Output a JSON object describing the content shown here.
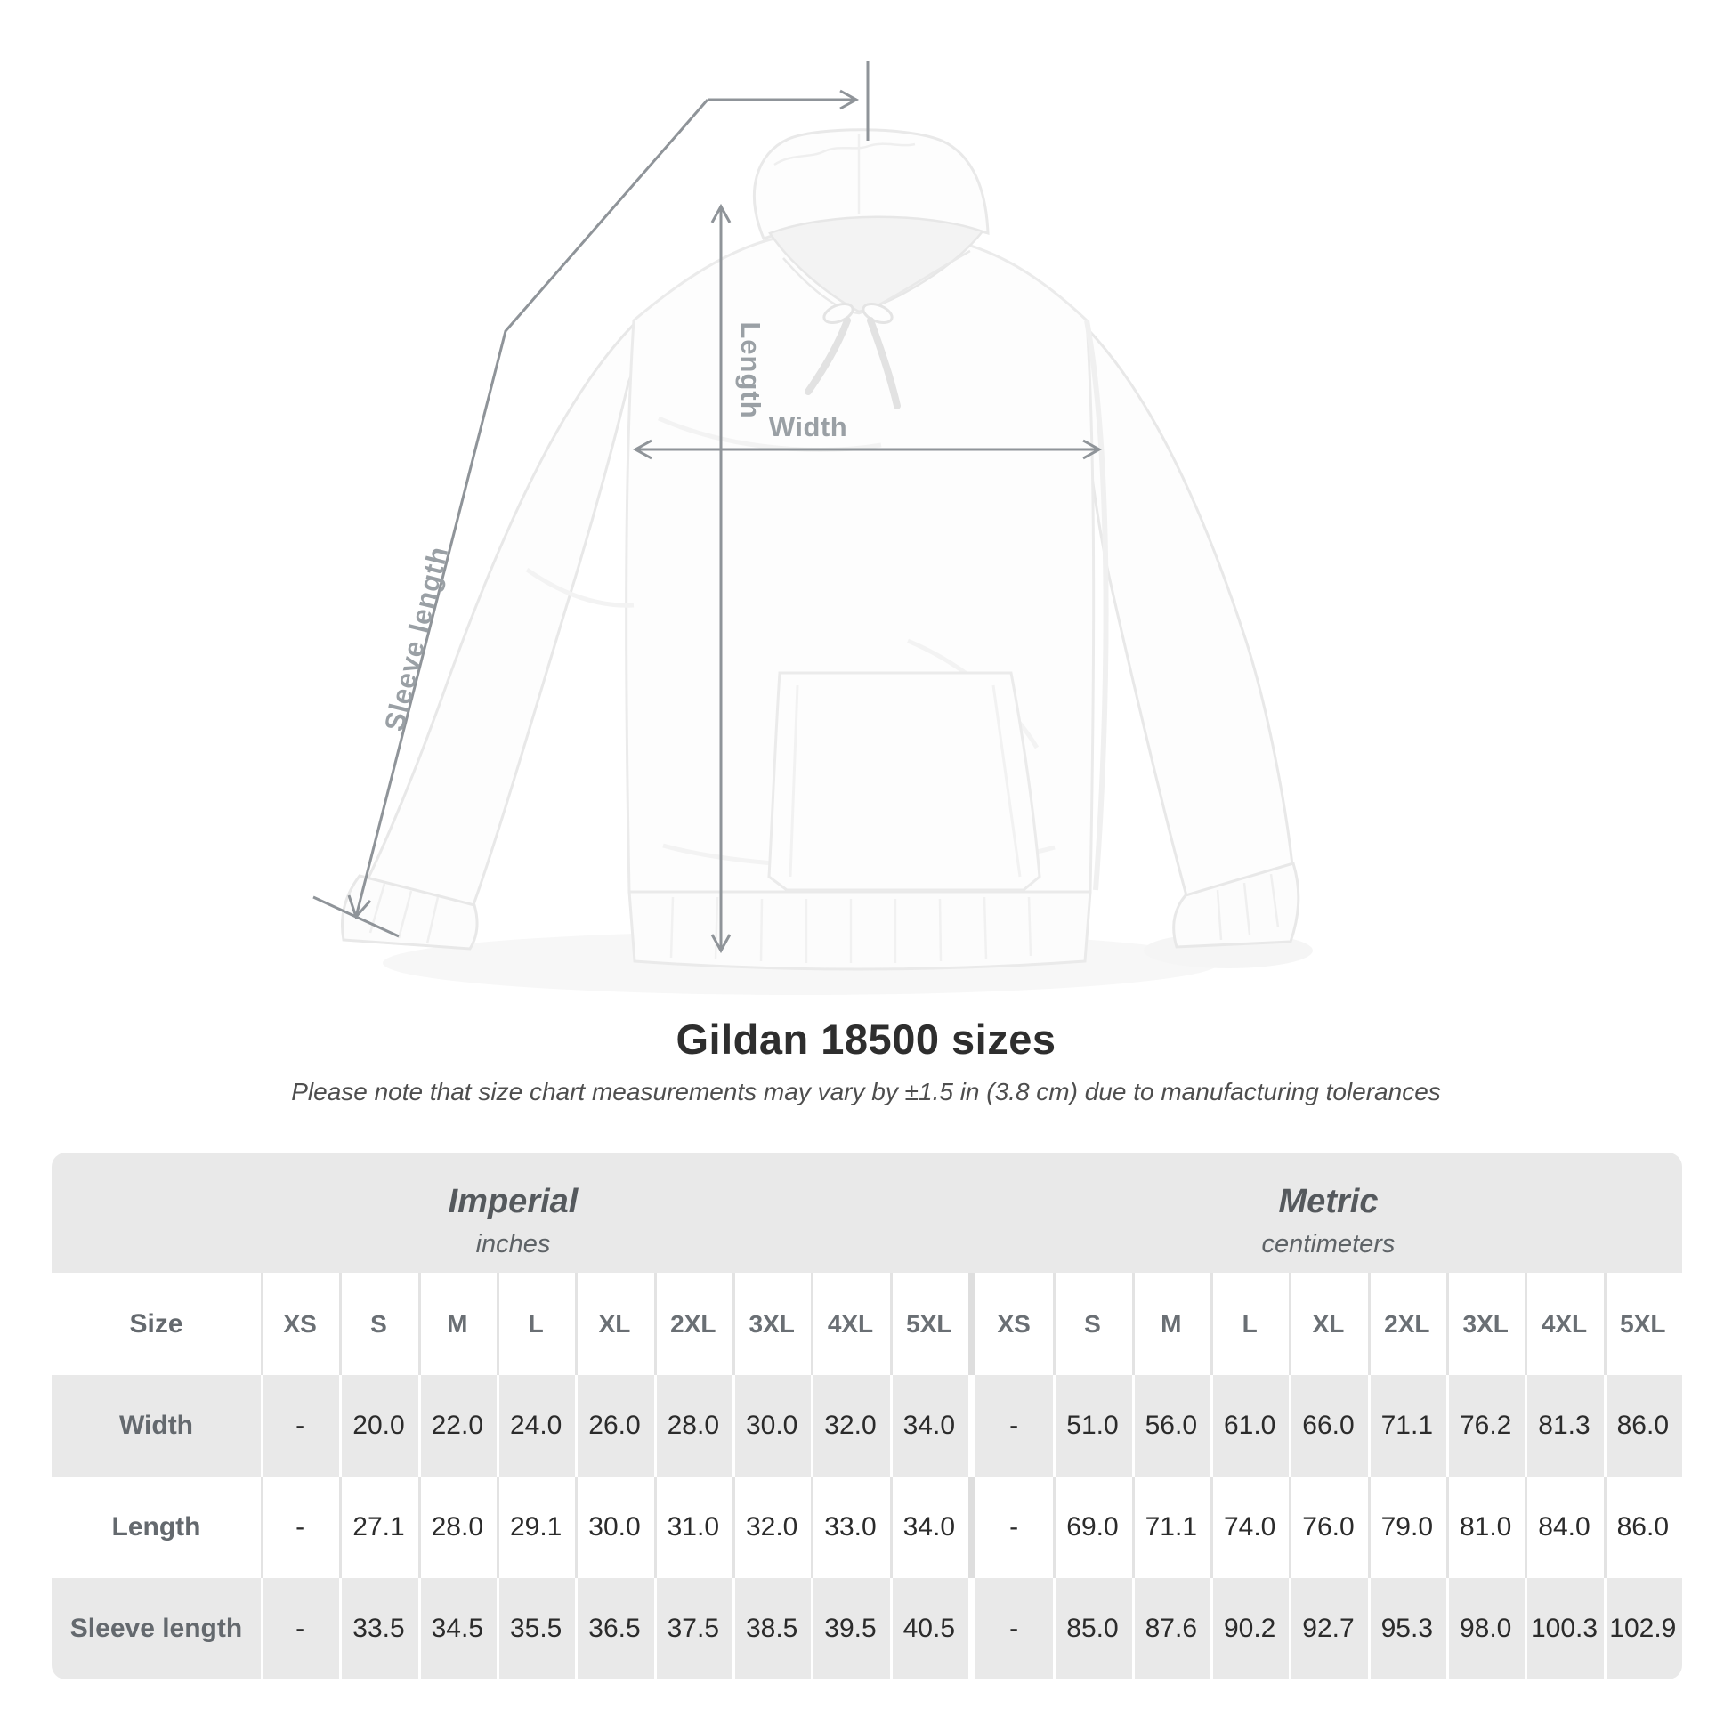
{
  "page": {
    "title": "Gildan 18500 sizes",
    "subtitle": "Please note that size chart measurements may vary by ±1.5 in (3.8 cm) due to manufacturing tolerances"
  },
  "diagram": {
    "product": "white pullover hoodie flat lay",
    "labels": {
      "length": "Length",
      "width": "Width",
      "sleeve_length": "Sleeve length"
    }
  },
  "size_chart": {
    "size_label": "Size",
    "sizes": [
      "XS",
      "S",
      "M",
      "L",
      "XL",
      "2XL",
      "3XL",
      "4XL",
      "5XL"
    ],
    "unit_groups": [
      {
        "name": "Imperial",
        "unit": "inches"
      },
      {
        "name": "Metric",
        "unit": "centimeters"
      }
    ],
    "rows": [
      {
        "label": "Width",
        "imperial": [
          "-",
          "20.0",
          "22.0",
          "24.0",
          "26.0",
          "28.0",
          "30.0",
          "32.0",
          "34.0"
        ],
        "metric": [
          "-",
          "51.0",
          "56.0",
          "61.0",
          "66.0",
          "71.1",
          "76.2",
          "81.3",
          "86.0"
        ]
      },
      {
        "label": "Length",
        "imperial": [
          "-",
          "27.1",
          "28.0",
          "29.1",
          "30.0",
          "31.0",
          "32.0",
          "33.0",
          "34.0"
        ],
        "metric": [
          "-",
          "69.0",
          "71.1",
          "74.0",
          "76.0",
          "79.0",
          "81.0",
          "84.0",
          "86.0"
        ]
      },
      {
        "label": "Sleeve length",
        "imperial": [
          "-",
          "33.5",
          "34.5",
          "35.5",
          "36.5",
          "37.5",
          "38.5",
          "39.5",
          "40.5"
        ],
        "metric": [
          "-",
          "85.0",
          "87.6",
          "90.2",
          "92.7",
          "95.3",
          "98.0",
          "100.3",
          "102.9"
        ]
      }
    ]
  },
  "colors": {
    "band_gray": "#e9e9e9",
    "row_alt_gray": "#e9e9e9",
    "separator_light": "#e3e3e3",
    "group_divider": "#dedede",
    "arrow": "#8f9499",
    "annotation_label": "#9aa0a5",
    "title_text": "#2e2e2e",
    "value_text": "#2b2b2b",
    "header_text": "#6a6f74"
  }
}
